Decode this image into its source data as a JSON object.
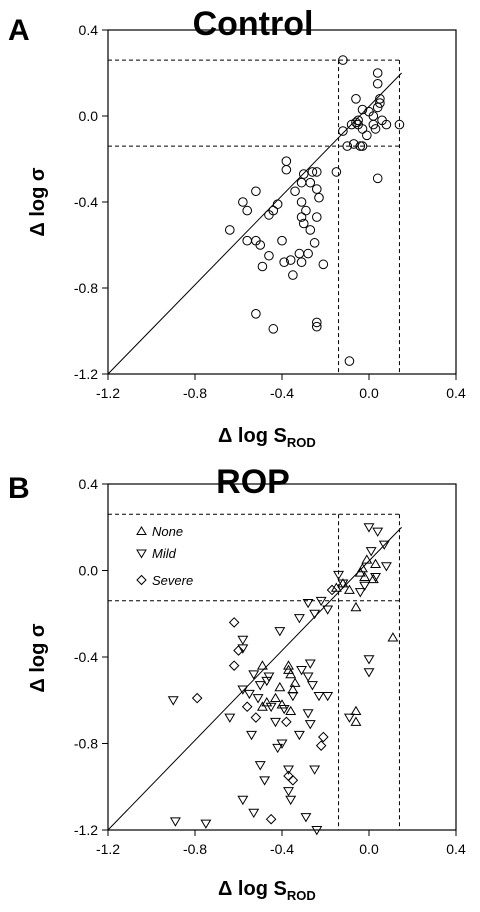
{
  "chart_data": [
    {
      "type": "scatter",
      "panel_label": "A",
      "title": "Control",
      "xlabel": {
        "prefix": "Δ log S",
        "sub": "ROD"
      },
      "ylabel": "Δ log σ",
      "xlim": [
        -1.2,
        0.4
      ],
      "ylim": [
        -1.2,
        0.4
      ],
      "xticks": [
        "-1.2",
        "-0.8",
        "-0.4",
        "0.0",
        "0.4"
      ],
      "yticks": [
        "-1.2",
        "-0.8",
        "-0.4",
        "0.0",
        "0.4"
      ],
      "reference_line": {
        "from": [
          -1.2,
          -1.2
        ],
        "to": [
          0.15,
          0.2
        ]
      },
      "dashed_x": [
        -0.14,
        0.14
      ],
      "dashed_y": [
        -0.14,
        0.26
      ],
      "series": [
        {
          "marker": "circle",
          "points": [
            [
              -0.12,
              0.26
            ],
            [
              0.04,
              0.2
            ],
            [
              0.04,
              0.15
            ],
            [
              -0.06,
              0.08
            ],
            [
              0.05,
              0.08
            ],
            [
              0.05,
              0.06
            ],
            [
              0.04,
              0.04
            ],
            [
              -0.03,
              0.03
            ],
            [
              0.0,
              0.02
            ],
            [
              0.02,
              0.0
            ],
            [
              -0.05,
              -0.02
            ],
            [
              -0.06,
              -0.03
            ],
            [
              -0.05,
              -0.04
            ],
            [
              -0.08,
              -0.04
            ],
            [
              0.02,
              -0.04
            ],
            [
              0.06,
              -0.02
            ],
            [
              0.08,
              -0.04
            ],
            [
              0.14,
              -0.04
            ],
            [
              -0.03,
              -0.06
            ],
            [
              0.03,
              -0.06
            ],
            [
              -0.01,
              -0.09
            ],
            [
              -0.12,
              -0.07
            ],
            [
              -0.04,
              -0.14
            ],
            [
              -0.03,
              -0.14
            ],
            [
              -0.07,
              -0.13
            ],
            [
              -0.1,
              -0.14
            ],
            [
              -0.15,
              -0.26
            ],
            [
              0.04,
              -0.29
            ],
            [
              -0.24,
              -0.26
            ],
            [
              -0.26,
              -0.26
            ],
            [
              -0.3,
              -0.27
            ],
            [
              -0.38,
              -0.21
            ],
            [
              -0.38,
              -0.25
            ],
            [
              -0.34,
              -0.35
            ],
            [
              -0.31,
              -0.31
            ],
            [
              -0.27,
              -0.31
            ],
            [
              -0.24,
              -0.34
            ],
            [
              -0.23,
              -0.38
            ],
            [
              -0.31,
              -0.4
            ],
            [
              -0.29,
              -0.44
            ],
            [
              -0.42,
              -0.41
            ],
            [
              -0.44,
              -0.44
            ],
            [
              -0.46,
              -0.46
            ],
            [
              -0.52,
              -0.35
            ],
            [
              -0.58,
              -0.4
            ],
            [
              -0.56,
              -0.44
            ],
            [
              -0.64,
              -0.53
            ],
            [
              -0.52,
              -0.58
            ],
            [
              -0.5,
              -0.6
            ],
            [
              -0.56,
              -0.58
            ],
            [
              -0.4,
              -0.58
            ],
            [
              -0.31,
              -0.47
            ],
            [
              -0.27,
              -0.53
            ],
            [
              -0.24,
              -0.47
            ],
            [
              -0.3,
              -0.5
            ],
            [
              -0.25,
              -0.59
            ],
            [
              -0.32,
              -0.64
            ],
            [
              -0.28,
              -0.64
            ],
            [
              -0.49,
              -0.7
            ],
            [
              -0.46,
              -0.65
            ],
            [
              -0.39,
              -0.68
            ],
            [
              -0.36,
              -0.67
            ],
            [
              -0.21,
              -0.69
            ],
            [
              -0.31,
              -0.68
            ],
            [
              -0.35,
              -0.74
            ],
            [
              -0.52,
              -0.92
            ],
            [
              -0.44,
              -0.99
            ],
            [
              -0.24,
              -0.96
            ],
            [
              -0.24,
              -0.98
            ],
            [
              -0.09,
              -1.14
            ]
          ]
        }
      ]
    },
    {
      "type": "scatter",
      "panel_label": "B",
      "title": "ROP",
      "xlabel": {
        "prefix": "Δ log S",
        "sub": "ROD"
      },
      "ylabel": "Δ log σ",
      "xlim": [
        -1.2,
        0.4
      ],
      "ylim": [
        -1.2,
        0.4
      ],
      "xticks": [
        "-1.2",
        "-0.8",
        "-0.4",
        "0.0",
        "0.4"
      ],
      "yticks": [
        "-1.2",
        "-0.8",
        "-0.4",
        "0.0",
        "0.4"
      ],
      "reference_line": {
        "from": [
          -1.2,
          -1.2
        ],
        "to": [
          0.15,
          0.2
        ]
      },
      "dashed_x": [
        -0.14,
        0.14
      ],
      "dashed_y": [
        -0.14,
        0.26
      ],
      "legend": [
        {
          "name": "None",
          "marker": "triangle-up"
        },
        {
          "name": "Mild",
          "marker": "triangle-down"
        },
        {
          "name": "Severe",
          "marker": "diamond"
        }
      ],
      "series": [
        {
          "name": "None",
          "marker": "triangle-up",
          "points": [
            [
              -0.01,
              0.05
            ],
            [
              0.03,
              0.03
            ],
            [
              -0.03,
              0.01
            ],
            [
              -0.04,
              -0.01
            ],
            [
              -0.02,
              -0.03
            ],
            [
              0.02,
              -0.04
            ],
            [
              -0.12,
              -0.06
            ],
            [
              -0.09,
              -0.09
            ],
            [
              -0.15,
              -0.08
            ],
            [
              -0.06,
              -0.17
            ],
            [
              0.11,
              -0.31
            ],
            [
              -0.37,
              -0.44
            ],
            [
              -0.37,
              -0.46
            ],
            [
              -0.36,
              -0.48
            ],
            [
              -0.41,
              -0.54
            ],
            [
              -0.34,
              -0.52
            ],
            [
              -0.35,
              -0.55
            ],
            [
              -0.43,
              -0.59
            ],
            [
              -0.49,
              -0.63
            ],
            [
              -0.47,
              -0.61
            ],
            [
              -0.4,
              -0.62
            ],
            [
              -0.36,
              -0.65
            ],
            [
              -0.06,
              -0.65
            ],
            [
              -0.06,
              -0.7
            ],
            [
              -0.49,
              -0.44
            ]
          ]
        },
        {
          "name": "Mild",
          "marker": "triangle-down",
          "points": [
            [
              0.0,
              0.2
            ],
            [
              0.04,
              0.18
            ],
            [
              0.07,
              0.12
            ],
            [
              0.01,
              0.09
            ],
            [
              0.08,
              0.02
            ],
            [
              0.03,
              -0.03
            ],
            [
              -0.14,
              -0.02
            ],
            [
              -0.12,
              -0.06
            ],
            [
              -0.02,
              -0.07
            ],
            [
              -0.04,
              -0.1
            ],
            [
              -0.22,
              -0.14
            ],
            [
              -0.28,
              -0.15
            ],
            [
              -0.19,
              -0.18
            ],
            [
              -0.25,
              -0.2
            ],
            [
              -0.32,
              -0.22
            ],
            [
              -0.41,
              -0.28
            ],
            [
              -0.58,
              -0.32
            ],
            [
              -0.58,
              -0.36
            ],
            [
              -0.27,
              -0.43
            ],
            [
              -0.31,
              -0.46
            ],
            [
              -0.28,
              -0.49
            ],
            [
              -0.46,
              -0.49
            ],
            [
              -0.26,
              -0.53
            ],
            [
              -0.47,
              -0.51
            ],
            [
              -0.53,
              -0.48
            ],
            [
              -0.5,
              -0.53
            ],
            [
              -0.55,
              -0.57
            ],
            [
              -0.58,
              -0.55
            ],
            [
              -0.23,
              -0.58
            ],
            [
              -0.19,
              -0.58
            ],
            [
              -0.35,
              -0.58
            ],
            [
              -0.51,
              -0.59
            ],
            [
              -0.45,
              -0.63
            ],
            [
              -0.39,
              -0.64
            ],
            [
              -0.28,
              -0.66
            ],
            [
              -0.27,
              -0.71
            ],
            [
              -0.43,
              -0.7
            ],
            [
              -0.32,
              -0.76
            ],
            [
              -0.4,
              -0.8
            ],
            [
              -0.09,
              -0.68
            ],
            [
              0.0,
              -0.47
            ],
            [
              0.0,
              -0.41
            ],
            [
              -0.64,
              -0.68
            ],
            [
              -0.54,
              -0.76
            ],
            [
              -0.9,
              -0.6
            ],
            [
              -0.42,
              -0.82
            ],
            [
              -0.5,
              -0.9
            ],
            [
              -0.48,
              -0.97
            ],
            [
              -0.37,
              -0.92
            ],
            [
              -0.25,
              -0.92
            ],
            [
              -0.58,
              -1.06
            ],
            [
              -0.37,
              -1.02
            ],
            [
              -0.53,
              -1.12
            ],
            [
              -0.36,
              -1.06
            ],
            [
              -0.75,
              -1.17
            ],
            [
              -0.89,
              -1.16
            ],
            [
              -0.24,
              -1.2
            ],
            [
              -0.29,
              -1.14
            ]
          ]
        },
        {
          "name": "Severe",
          "marker": "diamond",
          "points": [
            [
              -0.62,
              -0.24
            ],
            [
              -0.6,
              -0.37
            ],
            [
              -0.62,
              -0.44
            ],
            [
              -0.79,
              -0.59
            ],
            [
              -0.56,
              -0.63
            ],
            [
              -0.52,
              -0.68
            ],
            [
              -0.38,
              -0.7
            ],
            [
              -0.35,
              -0.97
            ],
            [
              -0.37,
              -0.95
            ],
            [
              -0.22,
              -0.81
            ],
            [
              -0.21,
              -0.77
            ],
            [
              -0.17,
              -0.09
            ],
            [
              -0.45,
              -1.15
            ]
          ]
        }
      ]
    }
  ]
}
